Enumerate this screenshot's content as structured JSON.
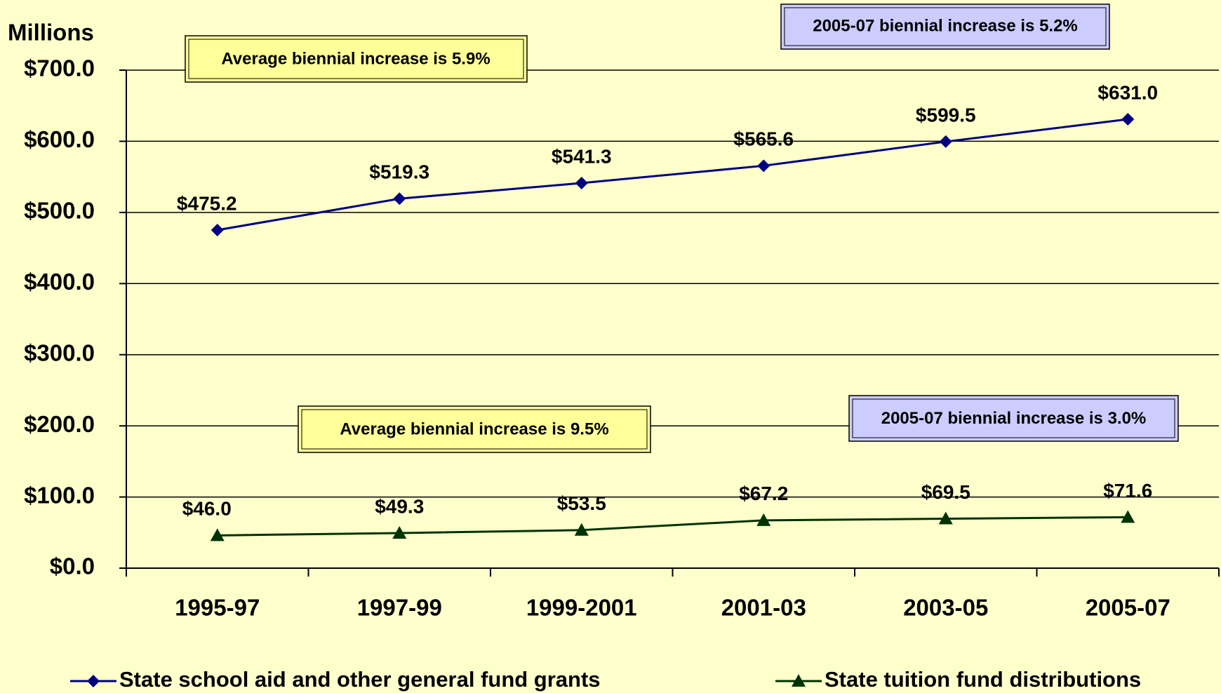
{
  "chart_data": {
    "type": "line",
    "y_label": "Millions",
    "categories": [
      "1995-97",
      "1997-99",
      "1999-2001",
      "2001-03",
      "2003-05",
      "2005-07"
    ],
    "series": [
      {
        "name": "State school aid and other general fund grants",
        "color": "#000080",
        "marker": "diamond",
        "values": [
          475.2,
          519.3,
          541.3,
          565.6,
          599.5,
          631.0
        ],
        "value_labels": [
          "$475.2",
          "$519.3",
          "$541.3",
          "$565.6",
          "$599.5",
          "$631.0"
        ]
      },
      {
        "name": "State tuition fund distributions",
        "color": "#003300",
        "marker": "triangle",
        "values": [
          46.0,
          49.3,
          53.5,
          67.2,
          69.5,
          71.6
        ],
        "value_labels": [
          "$46.0",
          "$49.3",
          "$53.5",
          "$67.2",
          "$69.5",
          "$71.6"
        ]
      }
    ],
    "ylim": [
      0,
      700
    ],
    "yticks": [
      {
        "value": 0,
        "label": "$0.0"
      },
      {
        "value": 100,
        "label": "$100.0"
      },
      {
        "value": 200,
        "label": "$200.0"
      },
      {
        "value": 300,
        "label": "$300.0"
      },
      {
        "value": 400,
        "label": "$400.0"
      },
      {
        "value": 500,
        "label": "$500.0"
      },
      {
        "value": 600,
        "label": "$600.0"
      },
      {
        "value": 700,
        "label": "$700.0"
      }
    ],
    "grid": true,
    "legend": "bottom",
    "annotations": [
      "Average biennial increase is 5.9%",
      "2005-07 biennial increase is 5.2%",
      "Average biennial increase is 9.5%",
      "2005-07 biennial increase is 3.0%"
    ]
  }
}
